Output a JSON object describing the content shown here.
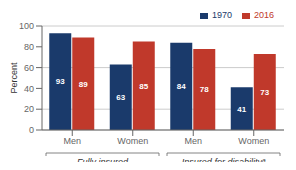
{
  "chart_data": {
    "type": "bar",
    "ylabel": "Percent",
    "categories": [
      "Men",
      "Women",
      "Men",
      "Women"
    ],
    "category_groups": [
      "Fully insured",
      "Fully insured",
      "Insured for disabilityᵃ",
      "Insured for disabilityᵃ"
    ],
    "series": [
      {
        "name": "1970",
        "color": "#1a3a6b",
        "values": [
          93,
          63,
          84,
          41
        ]
      },
      {
        "name": "2016",
        "color": "#c0392b",
        "values": [
          89,
          85,
          78,
          73
        ]
      }
    ],
    "ylim": [
      0,
      100
    ],
    "yticks": [
      0,
      20,
      40,
      60,
      80,
      100
    ],
    "grid": true,
    "legend": "upper right",
    "data_labels": true
  }
}
